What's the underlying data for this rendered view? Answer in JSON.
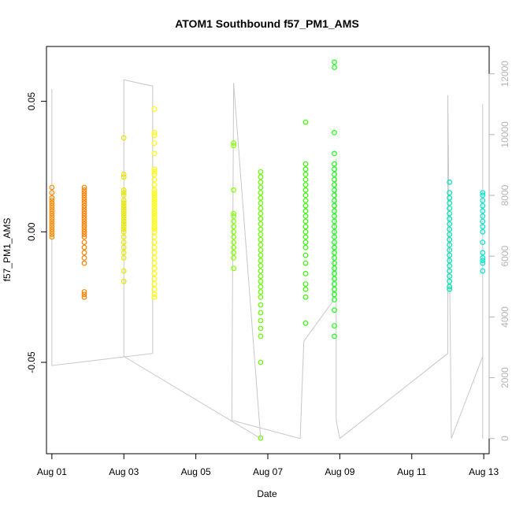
{
  "chart_data": {
    "type": "scatter",
    "title": "ATOM1 Southbound f57_PM1_AMS",
    "xlabel": "Date",
    "ylabel": "f57_PM1_AMS",
    "xlim": [
      -0.15,
      12.15
    ],
    "ylim": [
      -0.085,
      0.071
    ],
    "x_ticks": [
      0,
      2,
      4,
      6,
      8,
      10,
      12
    ],
    "x_tick_labels": [
      "Aug 01",
      "Aug 03",
      "Aug 05",
      "Aug 07",
      "Aug 09",
      "Aug 11",
      "Aug 13"
    ],
    "y_ticks": [
      -0.05,
      0.0,
      0.05
    ],
    "y_tick_labels": [
      "-0.05",
      "0.00",
      "0.05"
    ],
    "right_axis": {
      "color": "#b3b3b3",
      "ylim": [
        -500,
        12900
      ],
      "ticks": [
        0,
        2000,
        4000,
        6000,
        8000,
        10000,
        12000
      ],
      "tick_labels": [
        "0",
        "2000",
        "4000",
        "6000",
        "8000",
        "10000",
        "12000"
      ]
    },
    "colors": {
      "line": "#c8c8c8"
    },
    "series": [
      {
        "color": "#ff8c00",
        "points": [
          [
            0.0,
            0.017
          ],
          [
            0.0,
            0.015
          ],
          [
            0.0,
            0.013
          ],
          [
            0.0,
            0.012
          ],
          [
            0.0,
            0.011
          ],
          [
            0.0,
            0.01
          ],
          [
            0.0,
            0.009
          ],
          [
            0.0,
            0.008
          ],
          [
            0.0,
            0.007
          ],
          [
            0.0,
            0.006
          ],
          [
            0.0,
            0.005
          ],
          [
            0.0,
            0.004
          ],
          [
            0.0,
            0.003
          ],
          [
            0.0,
            0.002
          ],
          [
            0.0,
            0.001
          ],
          [
            0.0,
            0.0
          ],
          [
            0.0,
            -0.001
          ],
          [
            0.0,
            -0.002
          ]
        ]
      },
      {
        "color": "#ff7f00",
        "points": [
          [
            0.9,
            0.017
          ],
          [
            0.9,
            0.016
          ],
          [
            0.9,
            0.015
          ],
          [
            0.9,
            0.014
          ],
          [
            0.9,
            0.013
          ],
          [
            0.9,
            0.012
          ],
          [
            0.9,
            0.011
          ],
          [
            0.9,
            0.01
          ],
          [
            0.9,
            0.009
          ],
          [
            0.9,
            0.008
          ],
          [
            0.9,
            0.007
          ],
          [
            0.9,
            0.006
          ],
          [
            0.9,
            0.005
          ],
          [
            0.9,
            0.004
          ],
          [
            0.9,
            0.003
          ],
          [
            0.9,
            0.002
          ],
          [
            0.9,
            0.001
          ],
          [
            0.9,
            0.0
          ],
          [
            0.9,
            -0.001
          ],
          [
            0.9,
            -0.002
          ],
          [
            0.9,
            -0.004
          ],
          [
            0.9,
            -0.006
          ],
          [
            0.9,
            -0.008
          ],
          [
            0.9,
            -0.01
          ],
          [
            0.9,
            -0.012
          ],
          [
            0.9,
            -0.023
          ],
          [
            0.9,
            -0.024
          ],
          [
            0.9,
            -0.025
          ]
        ]
      },
      {
        "color": "#e6e600",
        "points": [
          [
            2.0,
            0.036
          ],
          [
            2.0,
            0.022
          ],
          [
            2.0,
            0.021
          ],
          [
            2.0,
            0.016
          ],
          [
            2.0,
            0.015
          ],
          [
            2.0,
            0.014
          ],
          [
            2.0,
            0.012
          ],
          [
            2.0,
            0.011
          ],
          [
            2.0,
            0.01
          ],
          [
            2.0,
            0.009
          ],
          [
            2.0,
            0.008
          ],
          [
            2.0,
            0.007
          ],
          [
            2.0,
            0.006
          ],
          [
            2.0,
            0.005
          ],
          [
            2.0,
            0.004
          ],
          [
            2.0,
            0.003
          ],
          [
            2.0,
            0.002
          ],
          [
            2.0,
            0.001
          ],
          [
            2.0,
            0.0
          ],
          [
            2.0,
            -0.002
          ],
          [
            2.0,
            -0.004
          ],
          [
            2.0,
            -0.006
          ],
          [
            2.0,
            -0.008
          ],
          [
            2.0,
            -0.01
          ],
          [
            2.0,
            -0.015
          ],
          [
            2.0,
            -0.019
          ]
        ]
      },
      {
        "color": "#ffff00",
        "points": [
          [
            2.85,
            0.047
          ],
          [
            2.85,
            0.038
          ],
          [
            2.85,
            0.037
          ],
          [
            2.85,
            0.034
          ],
          [
            2.85,
            0.03
          ],
          [
            2.85,
            0.024
          ],
          [
            2.85,
            0.023
          ],
          [
            2.85,
            0.022
          ],
          [
            2.85,
            0.02
          ],
          [
            2.85,
            0.018
          ],
          [
            2.85,
            0.016
          ],
          [
            2.85,
            0.015
          ],
          [
            2.85,
            0.014
          ],
          [
            2.85,
            0.013
          ],
          [
            2.85,
            0.012
          ],
          [
            2.85,
            0.011
          ],
          [
            2.85,
            0.01
          ],
          [
            2.85,
            0.009
          ],
          [
            2.85,
            0.008
          ],
          [
            2.85,
            0.007
          ],
          [
            2.85,
            0.006
          ],
          [
            2.85,
            0.005
          ],
          [
            2.85,
            0.004
          ],
          [
            2.85,
            0.003
          ],
          [
            2.85,
            0.002
          ],
          [
            2.85,
            0.001
          ],
          [
            2.85,
            0.0
          ],
          [
            2.85,
            -0.002
          ],
          [
            2.85,
            -0.004
          ],
          [
            2.85,
            -0.006
          ],
          [
            2.85,
            -0.008
          ],
          [
            2.85,
            -0.01
          ],
          [
            2.85,
            -0.012
          ],
          [
            2.85,
            -0.014
          ],
          [
            2.85,
            -0.016
          ],
          [
            2.85,
            -0.018
          ],
          [
            2.85,
            -0.02
          ],
          [
            2.85,
            -0.022
          ],
          [
            2.85,
            -0.024
          ],
          [
            2.85,
            -0.025
          ]
        ]
      },
      {
        "color": "#80ff00",
        "points": [
          [
            5.05,
            0.034
          ],
          [
            5.05,
            0.033
          ],
          [
            5.05,
            0.016
          ],
          [
            5.05,
            0.007
          ],
          [
            5.05,
            0.006
          ],
          [
            5.05,
            0.004
          ],
          [
            5.05,
            0.002
          ],
          [
            5.05,
            0.0
          ],
          [
            5.05,
            -0.002
          ],
          [
            5.05,
            -0.004
          ],
          [
            5.05,
            -0.006
          ],
          [
            5.05,
            -0.008
          ],
          [
            5.05,
            -0.01
          ],
          [
            5.05,
            -0.014
          ]
        ]
      },
      {
        "color": "#66ff00",
        "points": [
          [
            5.8,
            0.023
          ],
          [
            5.8,
            0.021
          ],
          [
            5.8,
            0.019
          ],
          [
            5.8,
            0.017
          ],
          [
            5.8,
            0.015
          ],
          [
            5.8,
            0.013
          ],
          [
            5.8,
            0.011
          ],
          [
            5.8,
            0.009
          ],
          [
            5.8,
            0.007
          ],
          [
            5.8,
            0.005
          ],
          [
            5.8,
            0.003
          ],
          [
            5.8,
            0.001
          ],
          [
            5.8,
            -0.001
          ],
          [
            5.8,
            -0.003
          ],
          [
            5.8,
            -0.005
          ],
          [
            5.8,
            -0.007
          ],
          [
            5.8,
            -0.009
          ],
          [
            5.8,
            -0.011
          ],
          [
            5.8,
            -0.013
          ],
          [
            5.8,
            -0.015
          ],
          [
            5.8,
            -0.017
          ],
          [
            5.8,
            -0.019
          ],
          [
            5.8,
            -0.021
          ],
          [
            5.8,
            -0.023
          ],
          [
            5.8,
            -0.025
          ],
          [
            5.8,
            -0.028
          ],
          [
            5.8,
            -0.031
          ],
          [
            5.8,
            -0.034
          ],
          [
            5.8,
            -0.037
          ],
          [
            5.8,
            -0.04
          ],
          [
            5.8,
            -0.05
          ],
          [
            5.8,
            -0.079
          ]
        ]
      },
      {
        "color": "#33ff00",
        "points": [
          [
            7.05,
            0.042
          ],
          [
            7.05,
            0.026
          ],
          [
            7.05,
            0.024
          ],
          [
            7.05,
            0.022
          ],
          [
            7.05,
            0.02
          ],
          [
            7.05,
            0.018
          ],
          [
            7.05,
            0.016
          ],
          [
            7.05,
            0.014
          ],
          [
            7.05,
            0.012
          ],
          [
            7.05,
            0.01
          ],
          [
            7.05,
            0.008
          ],
          [
            7.05,
            0.006
          ],
          [
            7.05,
            0.004
          ],
          [
            7.05,
            0.002
          ],
          [
            7.05,
            0.0
          ],
          [
            7.05,
            -0.002
          ],
          [
            7.05,
            -0.004
          ],
          [
            7.05,
            -0.006
          ],
          [
            7.05,
            -0.009
          ],
          [
            7.05,
            -0.012
          ],
          [
            7.05,
            -0.016
          ],
          [
            7.05,
            -0.02
          ],
          [
            7.05,
            -0.022
          ],
          [
            7.05,
            -0.025
          ],
          [
            7.05,
            -0.035
          ]
        ]
      },
      {
        "color": "#1aff1a",
        "points": [
          [
            7.85,
            0.065
          ],
          [
            7.85,
            0.063
          ],
          [
            7.85,
            0.038
          ],
          [
            7.85,
            0.03
          ],
          [
            7.85,
            0.026
          ],
          [
            7.85,
            0.024
          ],
          [
            7.85,
            0.022
          ],
          [
            7.85,
            0.02
          ],
          [
            7.85,
            0.018
          ],
          [
            7.85,
            0.016
          ],
          [
            7.85,
            0.014
          ],
          [
            7.85,
            0.012
          ],
          [
            7.85,
            0.01
          ],
          [
            7.85,
            0.008
          ],
          [
            7.85,
            0.006
          ],
          [
            7.85,
            0.004
          ],
          [
            7.85,
            0.002
          ],
          [
            7.85,
            0.0
          ],
          [
            7.85,
            -0.002
          ],
          [
            7.85,
            -0.004
          ],
          [
            7.85,
            -0.006
          ],
          [
            7.85,
            -0.008
          ],
          [
            7.85,
            -0.01
          ],
          [
            7.85,
            -0.012
          ],
          [
            7.85,
            -0.014
          ],
          [
            7.85,
            -0.016
          ],
          [
            7.85,
            -0.018
          ],
          [
            7.85,
            -0.02
          ],
          [
            7.85,
            -0.022
          ],
          [
            7.85,
            -0.024
          ],
          [
            7.85,
            -0.026
          ],
          [
            7.85,
            -0.03
          ],
          [
            7.85,
            -0.036
          ],
          [
            7.85,
            -0.04
          ]
        ]
      },
      {
        "color": "#00e6b4",
        "points": [
          [
            11.05,
            0.019
          ],
          [
            11.05,
            0.015
          ],
          [
            11.05,
            0.013
          ],
          [
            11.05,
            0.011
          ],
          [
            11.05,
            0.009
          ],
          [
            11.05,
            0.007
          ],
          [
            11.05,
            0.005
          ],
          [
            11.05,
            0.003
          ],
          [
            11.05,
            0.001
          ],
          [
            11.05,
            -0.001
          ],
          [
            11.05,
            -0.003
          ],
          [
            11.05,
            -0.005
          ],
          [
            11.05,
            -0.007
          ],
          [
            11.05,
            -0.009
          ],
          [
            11.05,
            -0.011
          ],
          [
            11.05,
            -0.013
          ],
          [
            11.05,
            -0.015
          ],
          [
            11.05,
            -0.017
          ],
          [
            11.05,
            -0.019
          ],
          [
            11.05,
            -0.021
          ],
          [
            11.05,
            -0.022
          ]
        ]
      },
      {
        "color": "#00e6c8",
        "points": [
          [
            11.97,
            0.015
          ],
          [
            11.97,
            0.014
          ],
          [
            11.97,
            0.012
          ],
          [
            11.97,
            0.01
          ],
          [
            11.97,
            0.008
          ],
          [
            11.97,
            0.006
          ],
          [
            11.97,
            0.004
          ],
          [
            11.97,
            0.002
          ],
          [
            11.97,
            0.0
          ],
          [
            11.97,
            -0.004
          ],
          [
            11.97,
            -0.008
          ],
          [
            11.97,
            -0.01
          ],
          [
            11.97,
            -0.011
          ],
          [
            11.97,
            -0.012
          ],
          [
            11.97,
            -0.015
          ]
        ]
      }
    ],
    "line": [
      [
        0.0,
        11500
      ],
      [
        0.0,
        2400
      ],
      [
        2.8,
        2800
      ],
      [
        2.8,
        11600
      ],
      [
        2.0,
        11800
      ],
      [
        2.0,
        2700
      ],
      [
        5.8,
        0
      ],
      [
        5.05,
        11700
      ],
      [
        5.0,
        600
      ],
      [
        6.9,
        0
      ],
      [
        7.0,
        3200
      ],
      [
        7.8,
        4500
      ],
      [
        7.9,
        9200
      ],
      [
        7.9,
        600
      ],
      [
        8.0,
        0
      ],
      [
        11.0,
        2800
      ],
      [
        11.0,
        11300
      ],
      [
        11.1,
        0
      ],
      [
        11.97,
        2700
      ],
      [
        11.97,
        0
      ],
      [
        11.97,
        11000
      ]
    ],
    "grid": false
  }
}
